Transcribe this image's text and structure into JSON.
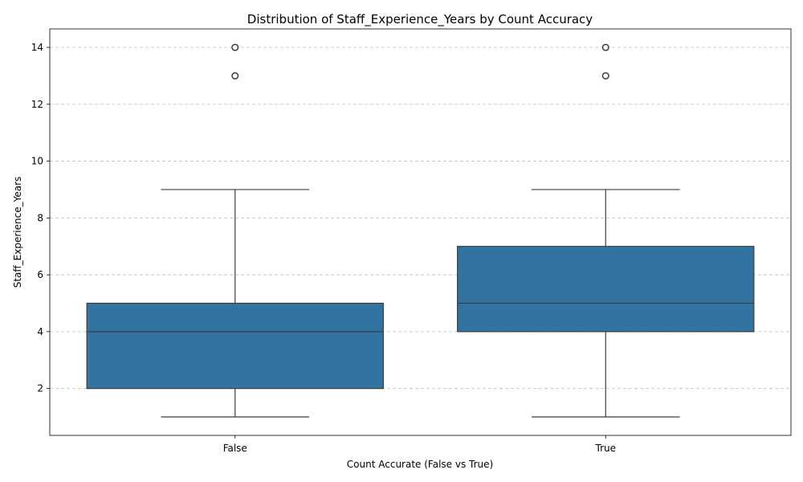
{
  "chart_data": {
    "type": "box",
    "title": "Distribution of Staff_Experience_Years by Count Accuracy",
    "xlabel": "Count Accurate (False vs True)",
    "ylabel": "Staff_Experience_Years",
    "categories": [
      "False",
      "True"
    ],
    "ylim": [
      0.35,
      14.65
    ],
    "yticks": [
      2,
      4,
      6,
      8,
      10,
      12,
      14
    ],
    "grid": "horizontal-dashed",
    "box_color": "#3274a1",
    "line_color": "#3d3d3d",
    "boxes": [
      {
        "category": "False",
        "whisker_low": 1,
        "q1": 2,
        "median": 4,
        "q3": 5,
        "whisker_high": 9,
        "outliers": [
          13,
          14
        ]
      },
      {
        "category": "True",
        "whisker_low": 1,
        "q1": 4,
        "median": 5,
        "q3": 7,
        "whisker_high": 9,
        "outliers": [
          13,
          14
        ]
      }
    ]
  }
}
